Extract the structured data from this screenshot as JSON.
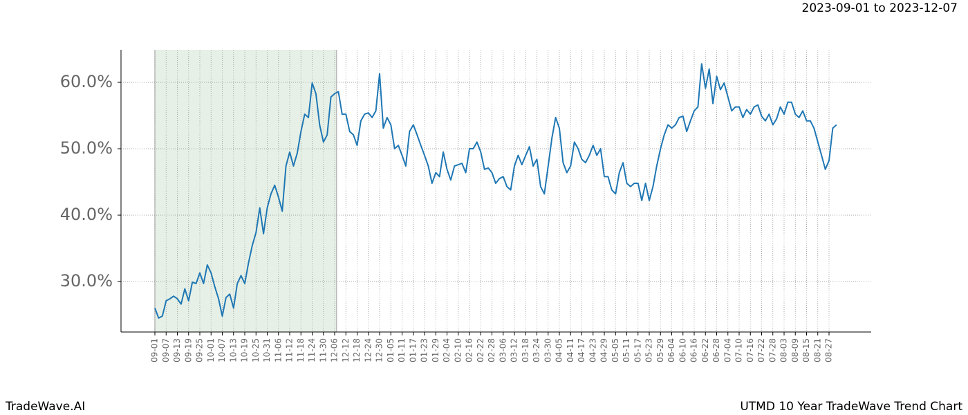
{
  "chart_data": {
    "type": "line",
    "date_range": "2023-09-01 to 2023-12-07",
    "brand": "TradeWave.AI",
    "title": "UTMD 10 Year TradeWave Trend Chart",
    "categories": [
      "09-01",
      null,
      null,
      "09-07",
      null,
      null,
      "09-13",
      null,
      null,
      "09-19",
      null,
      null,
      "09-25",
      null,
      null,
      "10-01",
      null,
      null,
      "10-07",
      null,
      null,
      "10-13",
      null,
      null,
      "10-19",
      null,
      null,
      "10-25",
      null,
      null,
      "10-31",
      null,
      null,
      "11-06",
      null,
      null,
      "11-12",
      null,
      null,
      "11-18",
      null,
      null,
      "11-24",
      null,
      null,
      "11-30",
      null,
      null,
      "12-06",
      null,
      null,
      "12-12",
      null,
      null,
      "12-18",
      null,
      null,
      "12-24",
      null,
      null,
      "12-30",
      null,
      null,
      "01-05",
      null,
      null,
      "01-11",
      null,
      null,
      "01-17",
      null,
      null,
      "01-23",
      null,
      null,
      "01-29",
      null,
      null,
      "02-04",
      null,
      null,
      "02-10",
      null,
      null,
      "02-16",
      null,
      null,
      "02-22",
      null,
      null,
      "02-28",
      null,
      null,
      "03-06",
      null,
      null,
      "03-12",
      null,
      null,
      "03-18",
      null,
      null,
      "03-24",
      null,
      null,
      "03-30",
      null,
      null,
      "04-05",
      null,
      null,
      "04-11",
      null,
      null,
      "04-17",
      null,
      null,
      "04-23",
      null,
      null,
      "04-29",
      null,
      null,
      "05-05",
      null,
      null,
      "05-11",
      null,
      null,
      "05-17",
      null,
      null,
      "05-23",
      null,
      null,
      "05-29",
      null,
      null,
      "06-04",
      null,
      null,
      "06-10",
      null,
      null,
      "06-16",
      null,
      null,
      "06-22",
      null,
      null,
      "06-28",
      null,
      null,
      "07-04",
      null,
      null,
      "07-10",
      null,
      null,
      "07-16",
      null,
      null,
      "07-22",
      null,
      null,
      "07-28",
      null,
      null,
      "08-03",
      null,
      null,
      "08-09",
      null,
      null,
      "08-15",
      null,
      null,
      "08-21",
      null,
      null,
      "08-27",
      null,
      null
    ],
    "series": [
      {
        "color": "#1f77b4",
        "values": [
          26.0,
          24.5,
          24.8,
          27.1,
          27.4,
          27.8,
          27.4,
          26.6,
          28.9,
          27.1,
          29.9,
          29.7,
          31.3,
          29.7,
          32.5,
          31.3,
          29.2,
          27.4,
          24.8,
          27.6,
          28.1,
          26.0,
          29.7,
          30.9,
          29.7,
          32.8,
          35.4,
          37.4,
          41.1,
          37.2,
          41.1,
          43.2,
          44.5,
          42.7,
          40.6,
          47.4,
          49.5,
          47.4,
          49.3,
          52.6,
          55.2,
          54.7,
          59.9,
          58.3,
          53.6,
          51.0,
          52.1,
          57.8,
          58.3,
          58.6,
          55.2,
          55.2,
          52.6,
          52.1,
          50.5,
          54.2,
          55.2,
          55.4,
          54.7,
          55.7,
          61.3,
          53.1,
          54.7,
          53.6,
          50.0,
          50.5,
          49.0,
          47.4,
          52.6,
          53.6,
          52.1,
          50.5,
          49.0,
          47.4,
          44.8,
          46.4,
          45.8,
          49.5,
          46.9,
          45.3,
          47.4,
          47.6,
          47.8,
          46.4,
          50.0,
          50.0,
          51.0,
          49.5,
          46.9,
          47.1,
          46.4,
          44.8,
          45.5,
          45.8,
          44.3,
          43.8,
          47.4,
          49.0,
          47.6,
          49.0,
          50.3,
          47.4,
          48.4,
          44.3,
          43.2,
          47.4,
          51.6,
          54.7,
          53.1,
          47.9,
          46.4,
          47.4,
          51.0,
          50.0,
          48.4,
          47.9,
          49.0,
          50.5,
          49.0,
          50.0,
          45.8,
          45.8,
          43.8,
          43.2,
          46.4,
          47.9,
          44.8,
          44.3,
          44.8,
          44.8,
          42.2,
          44.8,
          42.2,
          44.3,
          47.4,
          50.0,
          52.1,
          53.6,
          53.1,
          53.6,
          54.7,
          54.9,
          52.6,
          54.2,
          55.7,
          56.3,
          62.8,
          59.1,
          62.0,
          56.8,
          60.9,
          58.9,
          59.9,
          57.8,
          55.7,
          56.3,
          56.3,
          54.7,
          55.9,
          55.2,
          56.3,
          56.6,
          54.9,
          54.2,
          55.2,
          53.6,
          54.5,
          56.3,
          55.2,
          57.0,
          57.0,
          55.2,
          54.7,
          55.7,
          54.2,
          54.2,
          53.1,
          51.0,
          49.0,
          46.9,
          48.2,
          53.1,
          53.6
        ]
      }
    ],
    "ylim": [
      22.4,
      64.9
    ],
    "yticks": [
      {
        "value": 30,
        "label": "30.0%"
      },
      {
        "value": 40,
        "label": "40.0%"
      },
      {
        "value": 50,
        "label": "50.0%"
      },
      {
        "value": 60,
        "label": "60.0%"
      }
    ],
    "grid": true,
    "highlight_color": "#e6f0e6"
  }
}
